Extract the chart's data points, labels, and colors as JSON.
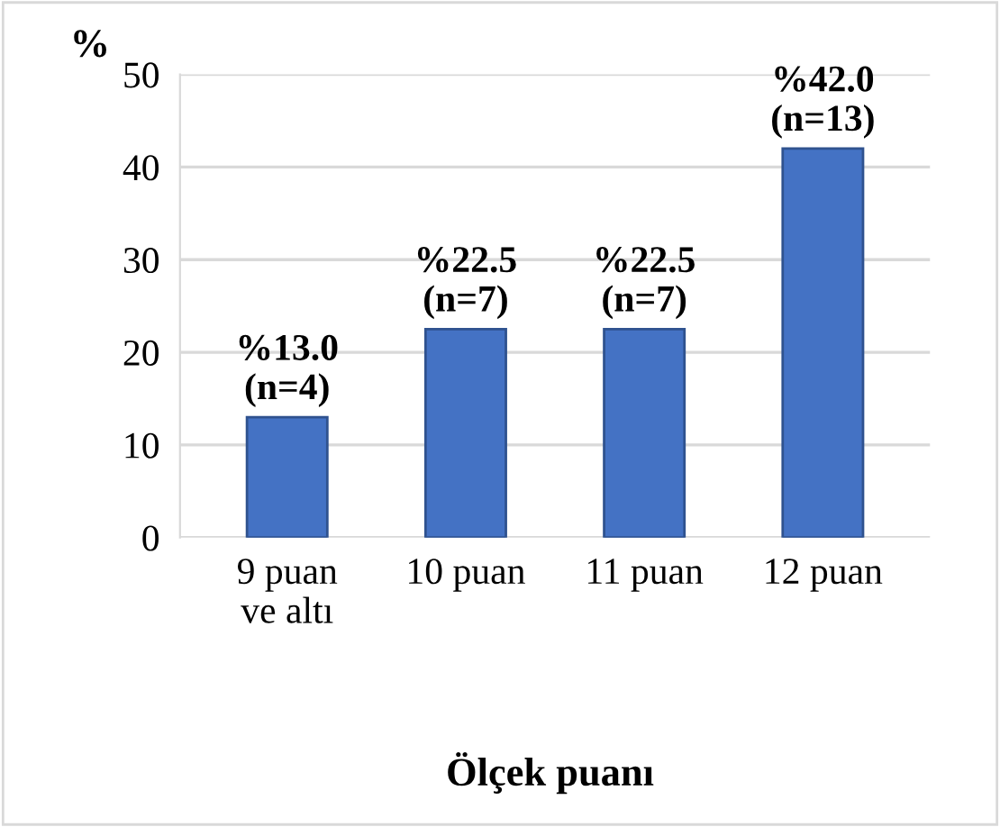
{
  "chart_data": {
    "type": "bar",
    "ylabel": "%",
    "xlabel": "Ölçek puanı",
    "categories": [
      "9 puan\nve altı",
      "10 puan",
      "11 puan",
      "12 puan"
    ],
    "values": [
      13.0,
      22.5,
      22.5,
      42.0
    ],
    "value_labels": [
      "%13.0\n(n=4)",
      "%22.5\n(n=7)",
      "%22.5\n(n=7)",
      "%42.0\n(n=13)"
    ],
    "color": "#4472c4",
    "ylim": [
      0,
      50
    ],
    "yticks": [
      0,
      10,
      20,
      30,
      40,
      50
    ],
    "grid": "y"
  }
}
